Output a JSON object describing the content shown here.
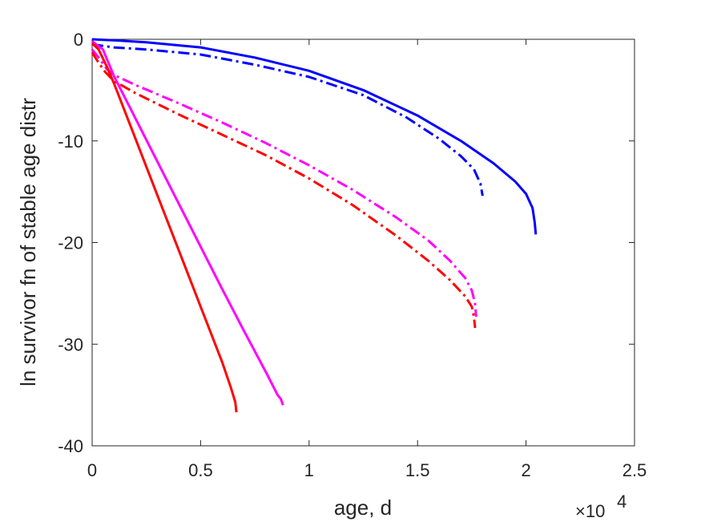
{
  "chart_data": {
    "type": "line",
    "title": "",
    "xlabel": "age, d",
    "ylabel": "ln survivor fn of stable age distr",
    "xlim": [
      0,
      25000
    ],
    "ylim": [
      -40,
      0
    ],
    "x_exponent_label": "×10",
    "x_exponent_power": "4",
    "xtick_labels": [
      "0",
      "0.5",
      "1",
      "1.5",
      "2",
      "2.5"
    ],
    "ytick_labels": [
      "0",
      "-10",
      "-20",
      "-30",
      "-40"
    ],
    "xticks": [
      0,
      5000,
      10000,
      15000,
      20000,
      25000
    ],
    "yticks": [
      0,
      -10,
      -20,
      -30,
      -40
    ],
    "grid": false,
    "series": [
      {
        "color": "#0000ff",
        "style": "solid",
        "points": [
          [
            0,
            0
          ],
          [
            1000,
            -0.1
          ],
          [
            2500,
            -0.3
          ],
          [
            5000,
            -0.8
          ],
          [
            7500,
            -1.8
          ],
          [
            10000,
            -3.1
          ],
          [
            12500,
            -5.0
          ],
          [
            15000,
            -7.5
          ],
          [
            17000,
            -10.0
          ],
          [
            18500,
            -12.2
          ],
          [
            19500,
            -14.0
          ],
          [
            20000,
            -15.2
          ],
          [
            20300,
            -16.6
          ],
          [
            20400,
            -18.0
          ],
          [
            20450,
            -19.2
          ]
        ]
      },
      {
        "color": "#0000ff",
        "style": "dashdot",
        "points": [
          [
            0,
            -0.5
          ],
          [
            1000,
            -0.8
          ],
          [
            2500,
            -1.0
          ],
          [
            5000,
            -1.5
          ],
          [
            7500,
            -2.5
          ],
          [
            10000,
            -3.7
          ],
          [
            12500,
            -5.5
          ],
          [
            14500,
            -7.7
          ],
          [
            16000,
            -9.8
          ],
          [
            17000,
            -11.5
          ],
          [
            17600,
            -12.8
          ],
          [
            17900,
            -14.2
          ],
          [
            18000,
            -15.4
          ]
        ]
      },
      {
        "color": "#ff00ff",
        "style": "dashdot",
        "points": [
          [
            0,
            -1.0
          ],
          [
            300,
            -1.8
          ],
          [
            700,
            -3.0
          ],
          [
            1000,
            -3.5
          ],
          [
            2000,
            -4.5
          ],
          [
            4000,
            -6.3
          ],
          [
            6000,
            -8.2
          ],
          [
            8000,
            -10.2
          ],
          [
            10000,
            -12.4
          ],
          [
            12000,
            -14.8
          ],
          [
            14000,
            -17.5
          ],
          [
            15500,
            -19.8
          ],
          [
            16500,
            -21.8
          ],
          [
            17200,
            -23.5
          ],
          [
            17500,
            -24.7
          ],
          [
            17650,
            -26.0
          ],
          [
            17700,
            -27.3
          ]
        ]
      },
      {
        "color": "#ff0000",
        "style": "dashdot",
        "points": [
          [
            0,
            -1.3
          ],
          [
            300,
            -2.3
          ],
          [
            600,
            -3.2
          ],
          [
            1000,
            -4.1
          ],
          [
            2000,
            -5.3
          ],
          [
            4000,
            -7.4
          ],
          [
            6000,
            -9.4
          ],
          [
            8000,
            -11.4
          ],
          [
            10000,
            -13.7
          ],
          [
            12000,
            -16.3
          ],
          [
            14000,
            -19.3
          ],
          [
            15500,
            -21.8
          ],
          [
            16500,
            -23.7
          ],
          [
            17200,
            -25.3
          ],
          [
            17500,
            -26.3
          ],
          [
            17600,
            -27.3
          ],
          [
            17650,
            -28.4
          ]
        ]
      },
      {
        "color": "#ff00ff",
        "style": "solid",
        "points": [
          [
            0,
            -0.2
          ],
          [
            500,
            -1.0
          ],
          [
            1000,
            -3.6
          ],
          [
            2000,
            -7.8
          ],
          [
            3000,
            -12.0
          ],
          [
            4000,
            -16.2
          ],
          [
            5000,
            -20.4
          ],
          [
            6000,
            -24.6
          ],
          [
            7000,
            -28.7
          ],
          [
            8000,
            -32.7
          ],
          [
            8550,
            -35.0
          ],
          [
            8700,
            -35.4
          ],
          [
            8800,
            -36.0
          ]
        ]
      },
      {
        "color": "#ff0000",
        "style": "solid",
        "points": [
          [
            0,
            -0.4
          ],
          [
            300,
            -1.0
          ],
          [
            700,
            -2.8
          ],
          [
            1000,
            -4.3
          ],
          [
            2000,
            -9.8
          ],
          [
            3000,
            -15.3
          ],
          [
            4000,
            -20.8
          ],
          [
            5000,
            -26.3
          ],
          [
            6000,
            -31.8
          ],
          [
            6400,
            -34.3
          ],
          [
            6600,
            -35.7
          ],
          [
            6650,
            -36.7
          ]
        ]
      }
    ]
  }
}
